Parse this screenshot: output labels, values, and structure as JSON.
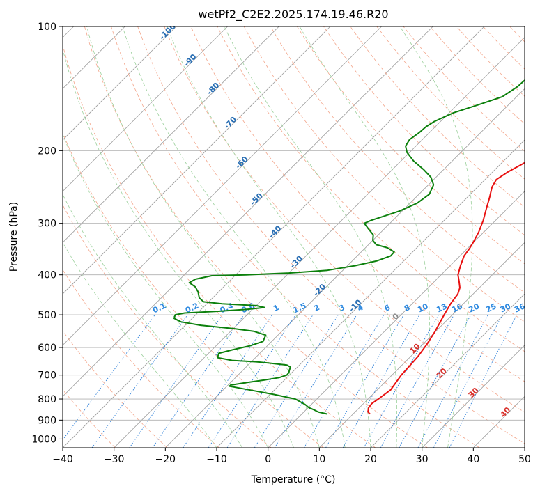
{
  "chart_data": {
    "type": "line",
    "title": "wetPf2_C2E2.2025.174.19.46.R20",
    "xlabel": "Temperature (°C)",
    "ylabel": "Pressure (hPa)",
    "xlim": [
      -40,
      50
    ],
    "ylim": [
      1050,
      100
    ],
    "y_scale": "log",
    "grid": true,
    "x_ticks": [
      -40,
      -30,
      -20,
      -10,
      0,
      10,
      20,
      30,
      40,
      50
    ],
    "y_ticks": [
      100,
      200,
      300,
      400,
      500,
      600,
      700,
      800,
      900,
      1000
    ],
    "skew_note_labels": {
      "isotherm_labels": [
        "-100",
        "-90",
        "-80",
        "-70",
        "-60",
        "-50",
        "-40",
        "-30",
        "-20",
        "-10",
        "0",
        "10",
        "20",
        "30",
        "40"
      ],
      "mixing_ratio_labels": [
        "0.1",
        "0.2",
        "0.4",
        "0.6",
        "1",
        "1.5",
        "2",
        "3",
        "4",
        "6",
        "8",
        "10",
        "13",
        "16",
        "20",
        "25",
        "30",
        "36"
      ]
    },
    "series": [
      {
        "color": "#e81010",
        "points": [
          [
            13.3,
            870
          ],
          [
            12.5,
            860
          ],
          [
            11.8,
            840
          ],
          [
            11.6,
            820
          ],
          [
            12.0,
            800
          ],
          [
            12.6,
            760
          ],
          [
            12.2,
            730
          ],
          [
            11.8,
            700
          ],
          [
            11.6,
            660
          ],
          [
            11.4,
            630
          ],
          [
            10.8,
            590
          ],
          [
            9.9,
            550
          ],
          [
            8.4,
            500
          ],
          [
            7.5,
            470
          ],
          [
            7.0,
            445
          ],
          [
            6.2,
            430
          ],
          [
            4.8,
            415
          ],
          [
            3.3,
            400
          ],
          [
            2.0,
            380
          ],
          [
            0.8,
            360
          ],
          [
            0.4,
            345
          ],
          [
            0.0,
            335
          ],
          [
            -1.0,
            315
          ],
          [
            -2.4,
            295
          ],
          [
            -4.2,
            275
          ],
          [
            -5.6,
            260
          ],
          [
            -7.2,
            245
          ],
          [
            -7.8,
            235
          ],
          [
            -7.0,
            225
          ],
          [
            -5.7,
            215
          ],
          [
            -4.4,
            205
          ],
          [
            -3.0,
            195
          ],
          [
            -1.8,
            185
          ],
          [
            -0.7,
            175
          ],
          [
            0.1,
            165
          ],
          [
            0.5,
            155
          ],
          [
            0.8,
            145
          ],
          [
            1.7,
            138
          ],
          [
            3.3,
            132
          ],
          [
            5.5,
            125
          ],
          [
            7.5,
            118
          ],
          [
            9.5,
            110
          ],
          [
            10.8,
            104
          ],
          [
            11.7,
            100
          ]
        ]
      },
      {
        "color": "#0c800c",
        "points": [
          [
            5.0,
            870
          ],
          [
            2.8,
            860
          ],
          [
            1.6,
            850
          ],
          [
            0.2,
            840
          ],
          [
            -1.2,
            825
          ],
          [
            -4.2,
            800
          ],
          [
            -9.2,
            780
          ],
          [
            -15.0,
            760
          ],
          [
            -19.5,
            745
          ],
          [
            -19.5,
            740
          ],
          [
            -17.0,
            730
          ],
          [
            -14.0,
            720
          ],
          [
            -11.5,
            710
          ],
          [
            -10.5,
            700
          ],
          [
            -10.6,
            690
          ],
          [
            -11.0,
            680
          ],
          [
            -11.3,
            670
          ],
          [
            -12.4,
            662
          ],
          [
            -16.0,
            655
          ],
          [
            -19.0,
            650
          ],
          [
            -24.0,
            645
          ],
          [
            -27.4,
            635
          ],
          [
            -28.0,
            620
          ],
          [
            -26.0,
            608
          ],
          [
            -23.5,
            595
          ],
          [
            -21.7,
            580
          ],
          [
            -22.4,
            560
          ],
          [
            -25.5,
            548
          ],
          [
            -30.0,
            540
          ],
          [
            -37.0,
            530
          ],
          [
            -41.5,
            520
          ],
          [
            -43.5,
            510
          ],
          [
            -44.0,
            500
          ],
          [
            -42.5,
            495
          ],
          [
            -36.0,
            490
          ],
          [
            -31.0,
            485
          ],
          [
            -28.0,
            480
          ],
          [
            -30.0,
            475
          ],
          [
            -37.0,
            470
          ],
          [
            -41.0,
            465
          ],
          [
            -42.6,
            455
          ],
          [
            -44.0,
            440
          ],
          [
            -45.5,
            428
          ],
          [
            -47.5,
            418
          ],
          [
            -47.0,
            410
          ],
          [
            -44.5,
            402
          ],
          [
            -38.0,
            400
          ],
          [
            -30.0,
            396
          ],
          [
            -23.0,
            390
          ],
          [
            -18.5,
            380
          ],
          [
            -15.2,
            370
          ],
          [
            -13.5,
            360
          ],
          [
            -13.6,
            352
          ],
          [
            -15.7,
            344
          ],
          [
            -18.5,
            338
          ],
          [
            -20.0,
            330
          ],
          [
            -21.0,
            320
          ],
          [
            -23.0,
            310
          ],
          [
            -25.0,
            300
          ],
          [
            -24.2,
            295
          ],
          [
            -22.5,
            288
          ],
          [
            -20.5,
            280
          ],
          [
            -18.6,
            268
          ],
          [
            -18.0,
            255
          ],
          [
            -19.0,
            242
          ],
          [
            -21.0,
            232
          ],
          [
            -24.0,
            222
          ],
          [
            -27.5,
            212
          ],
          [
            -30.5,
            202
          ],
          [
            -32.0,
            195
          ],
          [
            -32.5,
            188
          ],
          [
            -32.0,
            181
          ],
          [
            -31.8,
            175
          ],
          [
            -31.2,
            170
          ],
          [
            -29.2,
            162
          ],
          [
            -26.0,
            155
          ],
          [
            -22.8,
            148
          ],
          [
            -21.8,
            140
          ],
          [
            -21.6,
            133
          ],
          [
            -21.5,
            125
          ],
          [
            -20.8,
            115
          ],
          [
            -19.6,
            106
          ],
          [
            -18.9,
            100
          ]
        ]
      }
    ]
  }
}
